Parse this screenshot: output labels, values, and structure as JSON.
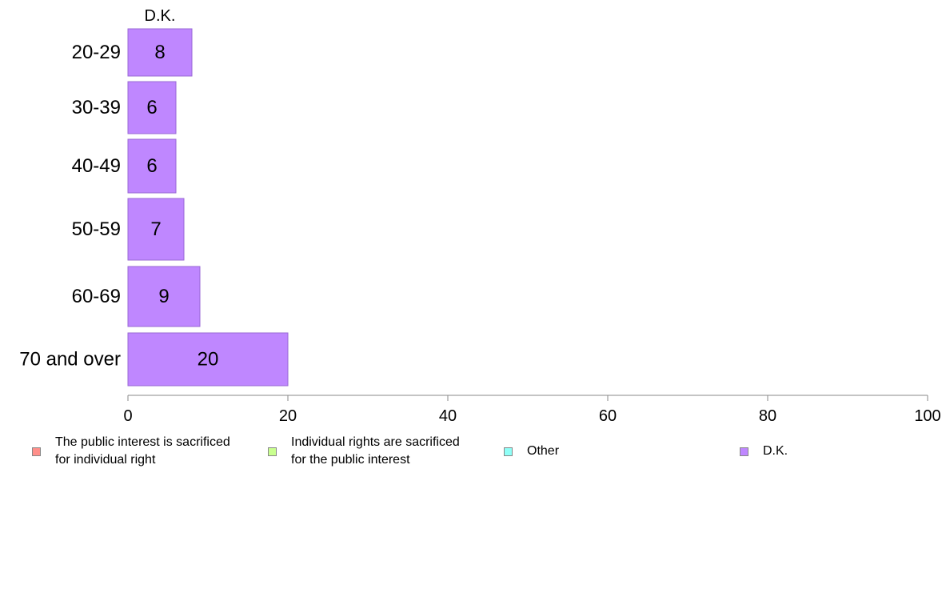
{
  "chart_data": {
    "type": "bar",
    "orientation": "horizontal",
    "series_title": "D.K.",
    "categories": [
      "20-29",
      "30-39",
      "40-49",
      "50-59",
      "60-69",
      "70 and over"
    ],
    "series": [
      {
        "name": "D.K.",
        "values": [
          8,
          6,
          6,
          7,
          9,
          20
        ],
        "data_labels": [
          "8",
          "6",
          "6",
          "7",
          "9",
          "20"
        ]
      }
    ],
    "xlim": [
      0,
      100
    ],
    "xticks": [
      "0",
      "20",
      "40",
      "60",
      "80",
      "100"
    ],
    "colors": {
      "bar_fill": "#bf87ff",
      "bar_stroke": "#9a6ad6",
      "axis": "#888888"
    }
  },
  "legend": {
    "placement": "bottom",
    "items": [
      {
        "label": "The public interest is sacrificed\nfor individual right",
        "color": "#ff8f8a"
      },
      {
        "label": "Individual rights are sacrificed\nfor the public interest",
        "color": "#c9ff8f"
      },
      {
        "label": "Other",
        "color": "#8ffff7"
      },
      {
        "label": "D.K.",
        "color": "#bf87ff"
      }
    ]
  }
}
